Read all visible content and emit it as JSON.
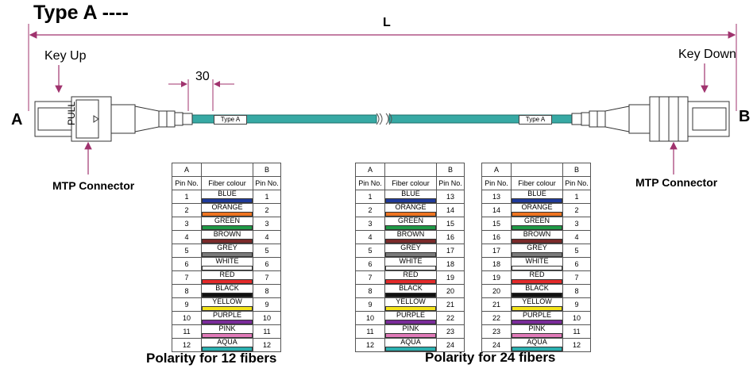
{
  "title": "Type A ----",
  "length_label": "L",
  "dimension_label": "30",
  "key_up_label": "Key Up",
  "key_down_label": "Key Down",
  "end_a": "A",
  "end_b": "B",
  "pull_label": "PULL",
  "cable_label_left": "Type A",
  "cable_label_right": "Type A",
  "connector_left": "MTP Connector",
  "connector_right": "MTP Connector",
  "caption_12": "Polarity for 12 fibers",
  "caption_24": "Polarity for 24 fibers",
  "table_headers": {
    "a": "A",
    "b": "B",
    "pin": "Pin No.",
    "colour": "Fiber colour"
  },
  "fiber_colors": [
    {
      "name": "BLUE",
      "hex": "#1f3a9a"
    },
    {
      "name": "ORANGE",
      "hex": "#ee7421"
    },
    {
      "name": "GREEN",
      "hex": "#1f9a46"
    },
    {
      "name": "BROWN",
      "hex": "#7a2a2a"
    },
    {
      "name": "GREY",
      "hex": "#7a7a7a"
    },
    {
      "name": "WHITE",
      "hex": "#ffffff"
    },
    {
      "name": "RED",
      "hex": "#e22a2a"
    },
    {
      "name": "BLACK",
      "hex": "#111111"
    },
    {
      "name": "YELLOW",
      "hex": "#f4e41a"
    },
    {
      "name": "PURPLE",
      "hex": "#7a2a9a"
    },
    {
      "name": "PINK",
      "hex": "#e07ab8"
    },
    {
      "name": "AQUA",
      "hex": "#2ab0b0"
    }
  ],
  "tables": [
    {
      "a": [
        "1",
        "2",
        "3",
        "4",
        "5",
        "6",
        "7",
        "8",
        "9",
        "10",
        "11",
        "12"
      ],
      "b": [
        "1",
        "2",
        "3",
        "4",
        "5",
        "6",
        "7",
        "8",
        "9",
        "10",
        "11",
        "12"
      ]
    },
    {
      "a": [
        "1",
        "2",
        "3",
        "4",
        "5",
        "6",
        "7",
        "8",
        "9",
        "10",
        "11",
        "12"
      ],
      "b": [
        "13",
        "14",
        "15",
        "16",
        "17",
        "18",
        "19",
        "20",
        "21",
        "22",
        "23",
        "24"
      ]
    },
    {
      "a": [
        "13",
        "14",
        "15",
        "16",
        "17",
        "18",
        "19",
        "20",
        "21",
        "22",
        "23",
        "24"
      ],
      "b": [
        "1",
        "2",
        "3",
        "4",
        "5",
        "6",
        "7",
        "8",
        "9",
        "10",
        "11",
        "12"
      ]
    }
  ]
}
